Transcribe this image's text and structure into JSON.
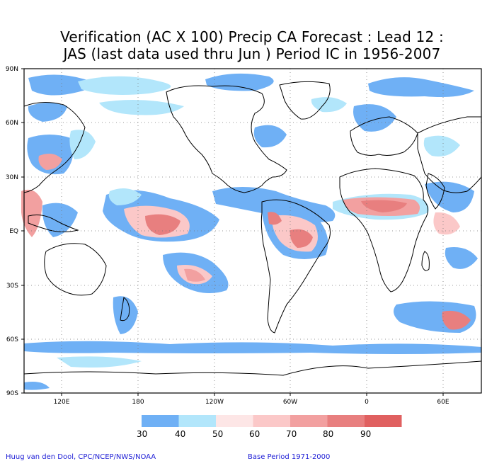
{
  "title_line1": "Verification (AC X 100) Precip CA Forecast : Lead 12 :",
  "title_line2": "JAS (last data used thru Jun ) Period IC in 1956-2007",
  "lat_labels": [
    "90N",
    "60N",
    "30N",
    "EQ",
    "30S",
    "60S",
    "90S"
  ],
  "lon_labels": [
    "120E",
    "180",
    "120W",
    "60W",
    "0",
    "60E"
  ],
  "legend": {
    "labels": [
      "30",
      "40",
      "50",
      "60",
      "70",
      "80",
      "90"
    ],
    "colors": [
      "#6fb0f5",
      "#b2e6fb",
      "#fde6e6",
      "#fbc8c8",
      "#f2a0a0",
      "#e87f7f",
      "#e06060"
    ]
  },
  "footer_left": "Huug van den Dool, CPC/NCEP/NWS/NOAA",
  "footer_right": "Base Period 1971-2000",
  "map_style": {
    "grid": "dotted",
    "land_outline_color": "#000000",
    "projection": "cylindrical equidistant, 90S-90N, 90E to 90E"
  }
}
